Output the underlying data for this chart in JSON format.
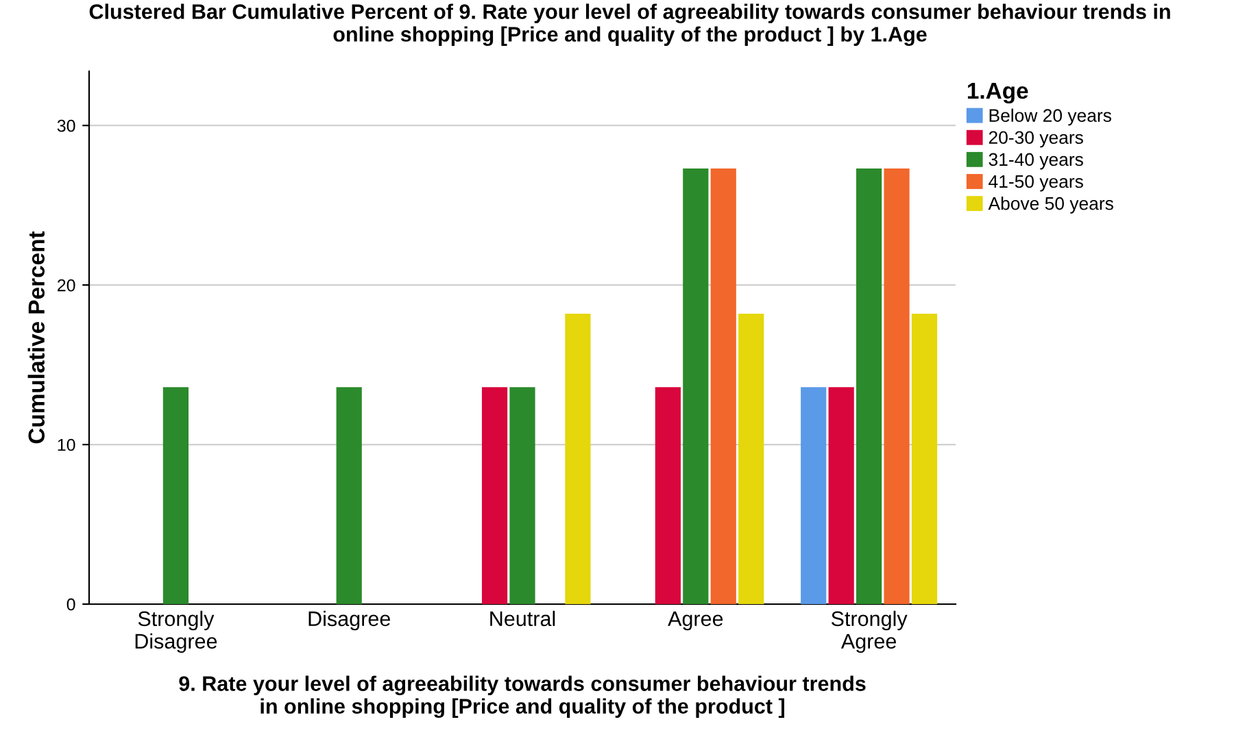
{
  "chart_data": {
    "type": "bar",
    "title": "Clustered Bar Cumulative Percent of 9. Rate your level of agreeability towards consumer behaviour trends in\nonline shopping [Price and quality of the product ] by 1.Age",
    "xlabel": "9. Rate your level of agreeability towards consumer behaviour trends\nin online shopping [Price and quality of the product ]",
    "ylabel": "Cumulative Percent",
    "legend_title": "1.Age",
    "categories": [
      "Strongly\nDisagree",
      "Disagree",
      "Neutral",
      "Agree",
      "Strongly\nAgree"
    ],
    "series": [
      {
        "name": "Below 20 years",
        "color": "#5b9ae8",
        "values": [
          null,
          null,
          null,
          null,
          13.6
        ]
      },
      {
        "name": "20-30 years",
        "color": "#d8063c",
        "values": [
          null,
          null,
          13.6,
          13.6,
          13.6
        ]
      },
      {
        "name": "31-40 years",
        "color": "#2b8a2b",
        "values": [
          13.6,
          13.6,
          13.6,
          27.3,
          27.3
        ]
      },
      {
        "name": "41-50 years",
        "color": "#f2672b",
        "values": [
          null,
          null,
          null,
          27.3,
          27.3
        ]
      },
      {
        "name": "Above 50 years",
        "color": "#e5d70c",
        "values": [
          null,
          null,
          18.2,
          18.2,
          18.2
        ]
      }
    ],
    "ylim": [
      0,
      33.4
    ],
    "yticks": [
      0,
      10,
      20,
      30
    ],
    "grid": "y",
    "legend": "top right"
  }
}
